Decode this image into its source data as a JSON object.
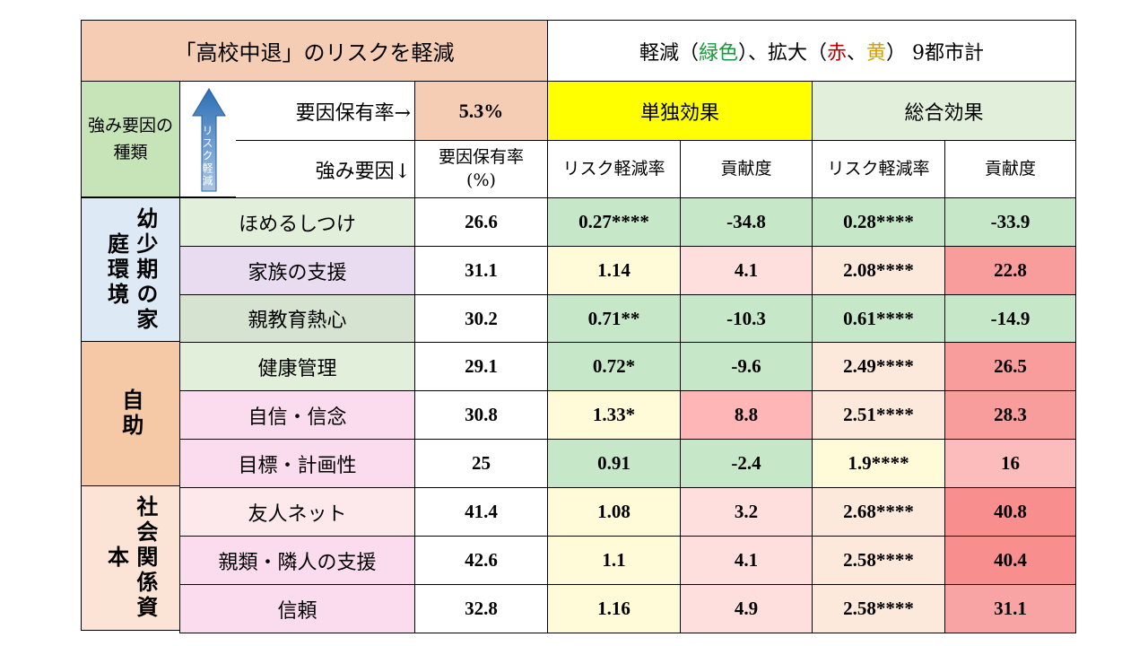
{
  "header": {
    "title": "「高校中退」のリスクを軽減",
    "legend_prefix": "軽減（",
    "legend_green": "緑色",
    "legend_mid": "）、拡大（",
    "legend_red": "赤",
    "legend_sep": "、",
    "legend_yellow": "黄",
    "legend_suffix": "） 9都市計"
  },
  "colors": {
    "green_text": "#1a9a3a",
    "red_text": "#c00000",
    "yellow_text": "#d4a000"
  },
  "subheader": {
    "category_label": "強み要因の種類",
    "arrow_text": "リスク軽減",
    "prevalence_label": "要因保有率→",
    "prevalence_value": "5.3%",
    "factor_label": "強み要因↓",
    "single_effect": "単独効果",
    "total_effect": "総合効果",
    "col_rate": "要因保有率(%)",
    "col_reduction1": "リスク軽減率",
    "col_contrib1": "貢献度",
    "col_reduction2": "リスク軽減率",
    "col_contrib2": "貢献度"
  },
  "groups": [
    {
      "label": "幼少期の家庭環境"
    },
    {
      "label": "自助"
    },
    {
      "label": "社会関係資本"
    }
  ],
  "rows": [
    {
      "factor": "ほめるしつけ",
      "rate": "26.6",
      "single_ratio": "0.27****",
      "single_contrib": "-34.8",
      "total_ratio": "0.28****",
      "total_contrib": "-33.9"
    },
    {
      "factor": "家族の支援",
      "rate": "31.1",
      "single_ratio": "1.14",
      "single_contrib": "4.1",
      "total_ratio": "2.08****",
      "total_contrib": "22.8"
    },
    {
      "factor": "親教育熱心",
      "rate": "30.2",
      "single_ratio": "0.71**",
      "single_contrib": "-10.3",
      "total_ratio": "0.61****",
      "total_contrib": "-14.9"
    },
    {
      "factor": "健康管理",
      "rate": "29.1",
      "single_ratio": "0.72*",
      "single_contrib": "-9.6",
      "total_ratio": "2.49****",
      "total_contrib": "26.5"
    },
    {
      "factor": "自信・信念",
      "rate": "30.8",
      "single_ratio": "1.33*",
      "single_contrib": "8.8",
      "total_ratio": "2.51****",
      "total_contrib": "28.3"
    },
    {
      "factor": "目標・計画性",
      "rate": "25",
      "single_ratio": "0.91",
      "single_contrib": "-2.4",
      "total_ratio": "1.9****",
      "total_contrib": "16"
    },
    {
      "factor": "友人ネット",
      "rate": "41.4",
      "single_ratio": "1.08",
      "single_contrib": "3.2",
      "total_ratio": "2.68****",
      "total_contrib": "40.8"
    },
    {
      "factor": "親類・隣人の支援",
      "rate": "42.6",
      "single_ratio": "1.1",
      "single_contrib": "4.1",
      "total_ratio": "2.58****",
      "total_contrib": "40.4"
    },
    {
      "factor": "信頼",
      "rate": "32.8",
      "single_ratio": "1.16",
      "single_contrib": "4.9",
      "total_ratio": "2.58****",
      "total_contrib": "31.1"
    }
  ]
}
